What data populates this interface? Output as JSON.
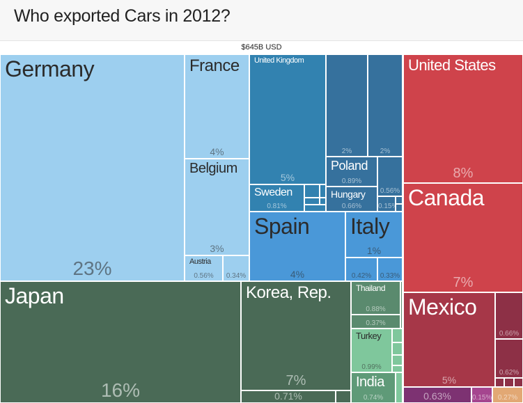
{
  "header": {
    "title": "Who exported Cars in 2012?"
  },
  "chart_data": {
    "type": "treemap",
    "title": "Who exported Cars in 2012?",
    "total_label": "$645B USD",
    "items": [
      {
        "name": "Germany",
        "share_label": "23%",
        "share": 23,
        "color": "#9dcfef",
        "text": "dark"
      },
      {
        "name": "France",
        "share_label": "4%",
        "share": 4,
        "color": "#9dcfef",
        "text": "dark"
      },
      {
        "name": "Belgium",
        "share_label": "3%",
        "share": 3,
        "color": "#9dcfef",
        "text": "dark"
      },
      {
        "name": "Austria",
        "share_label": "0.56%",
        "share": 0.56,
        "color": "#9dcfef",
        "text": "dark"
      },
      {
        "name": "",
        "share_label": "0.34%",
        "share": 0.34,
        "color": "#9dcfef",
        "text": "dark"
      },
      {
        "name": "United Kingdom",
        "share_label": "5%",
        "share": 5,
        "color": "#3282b0",
        "text": "light"
      },
      {
        "name": "",
        "share_label": "2%",
        "share": 2,
        "color": "#36719d",
        "text": "light"
      },
      {
        "name": "",
        "share_label": "2%",
        "share": 2,
        "color": "#36719d",
        "text": "light"
      },
      {
        "name": "Poland",
        "share_label": "0.89%",
        "share": 0.89,
        "color": "#36719d",
        "text": "light"
      },
      {
        "name": "Hungary",
        "share_label": "0.66%",
        "share": 0.66,
        "color": "#36719d",
        "text": "light"
      },
      {
        "name": "",
        "share_label": "0.56%",
        "share": 0.56,
        "color": "#36719d",
        "text": "light"
      },
      {
        "name": "",
        "share_label": "0.15%",
        "share": 0.15,
        "color": "#36719d",
        "text": "light"
      },
      {
        "name": "Sweden",
        "share_label": "0.81%",
        "share": 0.81,
        "color": "#3282b0",
        "text": "light"
      },
      {
        "name": "Spain",
        "share_label": "4%",
        "share": 4,
        "color": "#4a98d8",
        "text": "dark"
      },
      {
        "name": "Italy",
        "share_label": "1%",
        "share": 1,
        "color": "#4a98d8",
        "text": "dark"
      },
      {
        "name": "",
        "share_label": "0.42%",
        "share": 0.42,
        "color": "#4a98d8",
        "text": "dark"
      },
      {
        "name": "",
        "share_label": "0.33%",
        "share": 0.33,
        "color": "#4a98d8",
        "text": "dark"
      },
      {
        "name": "United States",
        "share_label": "8%",
        "share": 8,
        "color": "#cf434b",
        "text": "light"
      },
      {
        "name": "Canada",
        "share_label": "7%",
        "share": 7,
        "color": "#cf434b",
        "text": "light"
      },
      {
        "name": "Mexico",
        "share_label": "5%",
        "share": 5,
        "color": "#a63748",
        "text": "light"
      },
      {
        "name": "",
        "share_label": "0.66%",
        "share": 0.66,
        "color": "#8d3046",
        "text": "light"
      },
      {
        "name": "",
        "share_label": "0.62%",
        "share": 0.62,
        "color": "#8d3046",
        "text": "light"
      },
      {
        "name": "",
        "share_label": "0.63%",
        "share": 0.63,
        "color": "#7d3272",
        "text": "light"
      },
      {
        "name": "",
        "share_label": "0.15%",
        "share": 0.15,
        "color": "#a5458f",
        "text": "light"
      },
      {
        "name": "",
        "share_label": "0.27%",
        "share": 0.27,
        "color": "#e2a874",
        "text": "light"
      },
      {
        "name": "Japan",
        "share_label": "16%",
        "share": 16,
        "color": "#4a6a56",
        "text": "light"
      },
      {
        "name": "Korea, Rep.",
        "share_label": "7%",
        "share": 7,
        "color": "#4a6a56",
        "text": "light"
      },
      {
        "name": "",
        "share_label": "0.71%",
        "share": 0.71,
        "color": "#4a6a56",
        "text": "light"
      },
      {
        "name": "Thailand",
        "share_label": "0.88%",
        "share": 0.88,
        "color": "#5a8a6e",
        "text": "light"
      },
      {
        "name": "",
        "share_label": "0.37%",
        "share": 0.37,
        "color": "#5a8a6e",
        "text": "light"
      },
      {
        "name": "Turkey",
        "share_label": "0.99%",
        "share": 0.99,
        "color": "#7fc79c",
        "text": "dark"
      },
      {
        "name": "India",
        "share_label": "0.74%",
        "share": 0.74,
        "color": "#5f9a78",
        "text": "light"
      }
    ]
  }
}
